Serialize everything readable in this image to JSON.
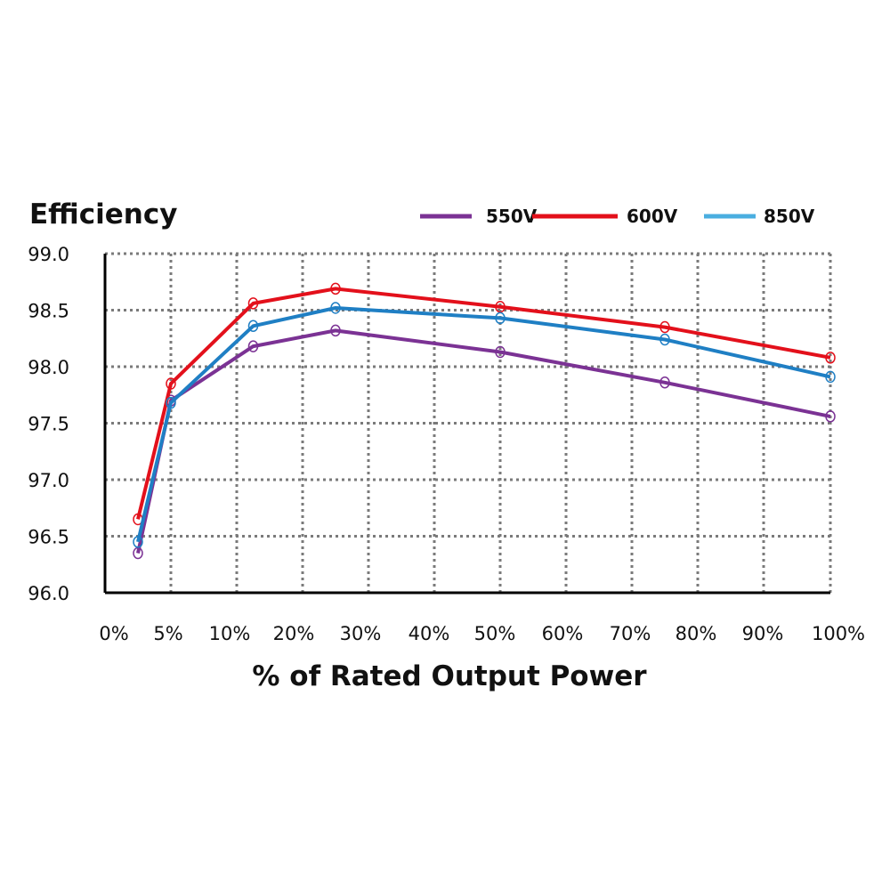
{
  "chart_data": {
    "type": "line",
    "title": "Efficiency",
    "xlabel": "% of Rated Output Power",
    "ylabel": "",
    "ylim": [
      96.0,
      99.0
    ],
    "yticks": [
      "96.0",
      "96.5",
      "97.0",
      "97.5",
      "98.0",
      "98.5",
      "99.0"
    ],
    "yticks_values": [
      96.0,
      96.5,
      97.0,
      97.5,
      98.0,
      98.5,
      99.0
    ],
    "xticks": [
      "0%",
      "5%",
      "10%",
      "20%",
      "30%",
      "40%",
      "50%",
      "60%",
      "70%",
      "80%",
      "90%",
      "100%"
    ],
    "x": [
      2.5,
      5,
      12.5,
      25,
      50,
      75,
      100
    ],
    "grid": true,
    "legend_position": "top-right",
    "series": [
      {
        "name": "550V",
        "color": "#7B3294",
        "values": [
          96.35,
          97.7,
          98.18,
          98.32,
          98.13,
          97.86,
          97.56
        ]
      },
      {
        "name": "600V",
        "color": "#E3101B",
        "values": [
          96.65,
          97.85,
          98.56,
          98.69,
          98.53,
          98.35,
          98.08
        ]
      },
      {
        "name": "850V",
        "color": "#1F7FC4",
        "values": [
          96.45,
          97.68,
          98.36,
          98.52,
          98.43,
          98.24,
          97.91
        ]
      }
    ],
    "legend_colors": [
      "#7B3294",
      "#E3101B",
      "#4AAEE0"
    ]
  }
}
